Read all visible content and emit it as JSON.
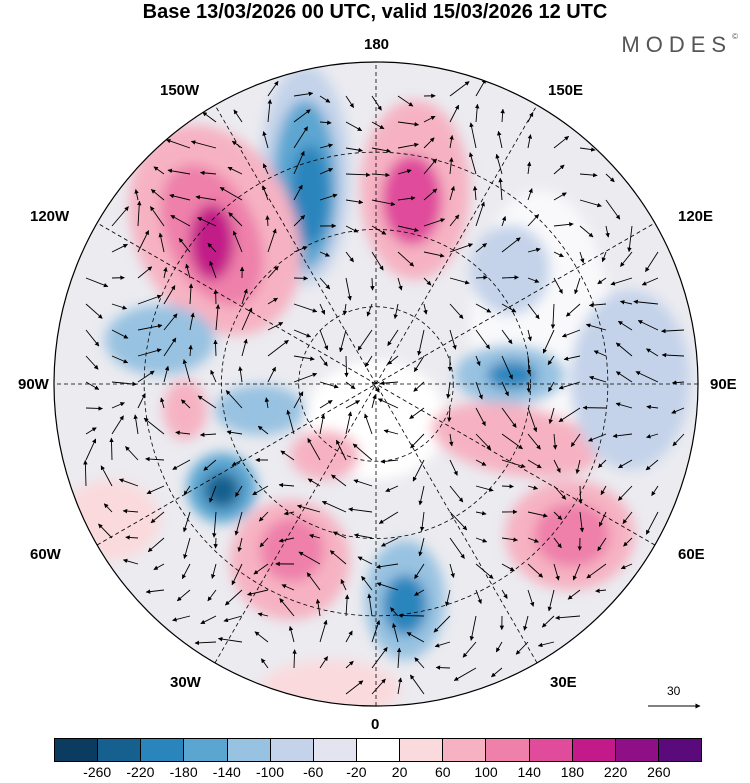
{
  "title": "Base 13/03/2026 00 UTC, valid 15/03/2026 12 UTC",
  "brand": "MODES",
  "brand_mark": "©",
  "longitude_labels": {
    "lon_180": "180",
    "lon_150w": "150W",
    "lon_150e": "150E",
    "lon_120w": "120W",
    "lon_120e": "120E",
    "lon_90w": "90W",
    "lon_90e": "90E",
    "lon_60w": "60W",
    "lon_60e": "60E",
    "lon_30w": "30W",
    "lon_30e": "30E",
    "lon_0": "0"
  },
  "vector_scale_label": "30",
  "colorbar": {
    "colors": [
      "#0b3b5e",
      "#15608e",
      "#2a85bd",
      "#5ba6d1",
      "#98c2e1",
      "#c4d3ea",
      "#e4e4f0",
      "#ffffff",
      "#fadadd",
      "#f6b2c2",
      "#ee80aa",
      "#e04b9c",
      "#c21a88",
      "#8e0f86",
      "#5a0a7a"
    ],
    "ticks": [
      "-260",
      "-220",
      "-180",
      "-140",
      "-100",
      "-60",
      "-20",
      "20",
      "60",
      "100",
      "140",
      "180",
      "220",
      "260"
    ]
  },
  "anomaly_features": [
    {
      "sign": "negative",
      "value": -200,
      "region": "north pacific (near 170w)"
    },
    {
      "sign": "positive",
      "value": 200,
      "region": "alaska / 130w"
    },
    {
      "sign": "positive",
      "value": 170,
      "region": "bering sea / 165e"
    },
    {
      "sign": "negative",
      "value": -110,
      "region": "east siberia"
    },
    {
      "sign": "negative",
      "value": -130,
      "region": "central siberia / 85e"
    },
    {
      "sign": "positive",
      "value": 120,
      "region": "ural / 60e"
    },
    {
      "sign": "positive",
      "value": 150,
      "region": "caspian / 50e"
    },
    {
      "sign": "negative",
      "value": -160,
      "region": "southwest europe / 10w"
    },
    {
      "sign": "positive",
      "value": 140,
      "region": "north atlantic / 40w"
    },
    {
      "sign": "negative",
      "value": -200,
      "region": "labrador / 65w"
    },
    {
      "sign": "negative",
      "value": -120,
      "region": "hudson bay / 90w"
    },
    {
      "sign": "positive",
      "value": 110,
      "region": "greenland"
    }
  ]
}
